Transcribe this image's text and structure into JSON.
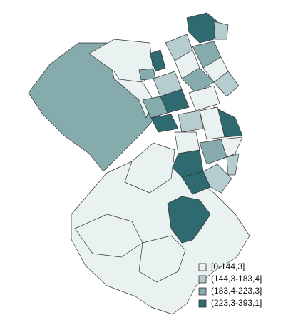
{
  "legend": {
    "items": [
      {
        "label": "[0-144,3]",
        "color": "#e9f1f1"
      },
      {
        "label": "(144,3-183,4]",
        "color": "#b5cdcf"
      },
      {
        "label": "(183,4-223,3]",
        "color": "#86abad"
      },
      {
        "label": "(223,3-393,1]",
        "color": "#2f6a71"
      }
    ]
  }
}
